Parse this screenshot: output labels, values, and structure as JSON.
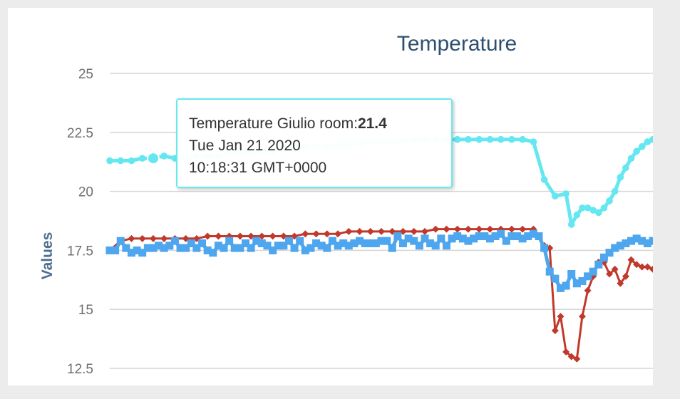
{
  "chart_data": {
    "type": "line",
    "title": "Temperature",
    "ylabel": "Values",
    "xlabel": "",
    "ylim": [
      12.5,
      25
    ],
    "yticks": [
      "25",
      "22.5",
      "20",
      "17.5",
      "15",
      "12.5"
    ],
    "grid": true,
    "series": [
      {
        "name": "Temperature Giulio room",
        "color": "#65e7f1",
        "marker": "circle",
        "x": [
          0,
          2,
          4,
          6,
          8,
          10,
          12,
          14,
          16,
          18,
          20,
          22,
          24,
          26,
          28,
          30,
          32,
          34,
          36,
          38,
          40,
          42,
          44,
          46,
          48,
          50,
          52,
          54,
          56,
          58,
          60,
          62,
          64,
          66,
          68,
          70,
          72,
          74,
          76,
          78,
          80,
          82,
          84,
          85,
          86,
          87,
          88,
          89,
          90,
          91,
          92,
          93,
          94,
          95,
          96,
          97,
          98,
          99,
          100
        ],
        "values": [
          21.3,
          21.3,
          21.3,
          21.4,
          21.4,
          21.5,
          21.4,
          21.4,
          21.5,
          21.5,
          21.5,
          21.6,
          21.6,
          21.6,
          21.7,
          21.7,
          21.8,
          21.8,
          21.9,
          21.9,
          21.9,
          22.0,
          22.0,
          22.0,
          22.1,
          22.1,
          22.1,
          22.1,
          22.2,
          22.2,
          22.2,
          22.2,
          22.2,
          22.2,
          22.2,
          22.2,
          22.2,
          22.2,
          22.2,
          22.1,
          20.5,
          19.8,
          19.9,
          18.6,
          19.0,
          19.3,
          19.3,
          19.2,
          19.1,
          19.3,
          19.6,
          20.0,
          20.6,
          21.0,
          21.4,
          21.7,
          21.9,
          22.1,
          22.2
        ]
      },
      {
        "name": "",
        "color": "#c0392b",
        "marker": "diamond",
        "x": [
          0,
          2,
          4,
          6,
          8,
          10,
          12,
          14,
          16,
          18,
          20,
          22,
          24,
          26,
          28,
          30,
          32,
          34,
          36,
          38,
          40,
          42,
          44,
          46,
          48,
          50,
          52,
          54,
          56,
          58,
          60,
          62,
          64,
          66,
          68,
          70,
          72,
          74,
          76,
          78,
          80,
          81,
          82,
          83,
          84,
          85,
          86,
          87,
          88,
          89,
          90,
          91,
          92,
          93,
          94,
          95,
          96,
          97,
          98,
          99,
          100
        ],
        "values": [
          17.5,
          17.9,
          18.0,
          18.0,
          18.0,
          18.0,
          18.0,
          18.0,
          18.0,
          18.1,
          18.1,
          18.1,
          18.1,
          18.1,
          18.1,
          18.1,
          18.1,
          18.1,
          18.2,
          18.2,
          18.2,
          18.2,
          18.3,
          18.3,
          18.3,
          18.3,
          18.3,
          18.3,
          18.3,
          18.3,
          18.4,
          18.4,
          18.4,
          18.4,
          18.4,
          18.4,
          18.4,
          18.4,
          18.4,
          18.4,
          17.7,
          17.6,
          14.1,
          14.7,
          13.2,
          13.0,
          12.9,
          14.7,
          15.8,
          16.4,
          17.0,
          17.0,
          16.5,
          16.7,
          16.1,
          16.4,
          17.1,
          16.9,
          16.8,
          16.8,
          16.7
        ]
      },
      {
        "name": "",
        "color": "#4da6ee",
        "marker": "square",
        "x": [
          0,
          1,
          2,
          3,
          4,
          5,
          6,
          7,
          8,
          9,
          10,
          11,
          12,
          13,
          14,
          15,
          16,
          17,
          18,
          19,
          20,
          21,
          22,
          23,
          24,
          25,
          26,
          27,
          28,
          29,
          30,
          31,
          32,
          33,
          34,
          35,
          36,
          37,
          38,
          39,
          40,
          41,
          42,
          43,
          44,
          45,
          46,
          47,
          48,
          49,
          50,
          51,
          52,
          53,
          54,
          55,
          56,
          57,
          58,
          59,
          60,
          61,
          62,
          63,
          64,
          65,
          66,
          67,
          68,
          69,
          70,
          71,
          72,
          73,
          74,
          75,
          76,
          77,
          78,
          79,
          80,
          81,
          82,
          83,
          84,
          85,
          86,
          87,
          88,
          89,
          90,
          91,
          92,
          93,
          94,
          95,
          96,
          97,
          98,
          99,
          100
        ],
        "values": [
          17.5,
          17.5,
          17.9,
          17.6,
          17.4,
          17.5,
          17.4,
          17.6,
          17.6,
          17.7,
          17.6,
          17.7,
          17.9,
          17.6,
          17.6,
          17.8,
          17.6,
          17.8,
          17.5,
          17.4,
          17.7,
          17.6,
          17.9,
          17.6,
          17.6,
          17.8,
          17.6,
          17.9,
          17.8,
          17.7,
          17.5,
          17.7,
          17.7,
          17.9,
          17.6,
          17.9,
          17.5,
          17.6,
          17.8,
          17.7,
          17.6,
          17.9,
          17.7,
          17.8,
          17.7,
          17.8,
          17.9,
          17.8,
          17.8,
          17.8,
          17.9,
          17.9,
          17.6,
          18.1,
          17.8,
          18.0,
          17.9,
          17.7,
          18.0,
          17.8,
          17.7,
          18.0,
          17.7,
          18.0,
          18.1,
          18.0,
          17.9,
          18.0,
          18.1,
          18.1,
          18.0,
          18.1,
          18.2,
          17.9,
          18.1,
          18.1,
          18.0,
          18.1,
          18.2,
          18.1,
          17.6,
          16.6,
          16.3,
          15.9,
          16.0,
          16.5,
          16.1,
          16.2,
          16.4,
          16.6,
          16.9,
          17.2,
          17.4,
          17.6,
          17.7,
          17.8,
          17.9,
          18.0,
          17.9,
          17.8,
          17.9
        ]
      }
    ]
  },
  "tooltip": {
    "series_label": "Temperature Giulio room:",
    "value": "21.4",
    "date": "Tue Jan 21 2020",
    "time": "10:18:31 GMT+0000"
  }
}
